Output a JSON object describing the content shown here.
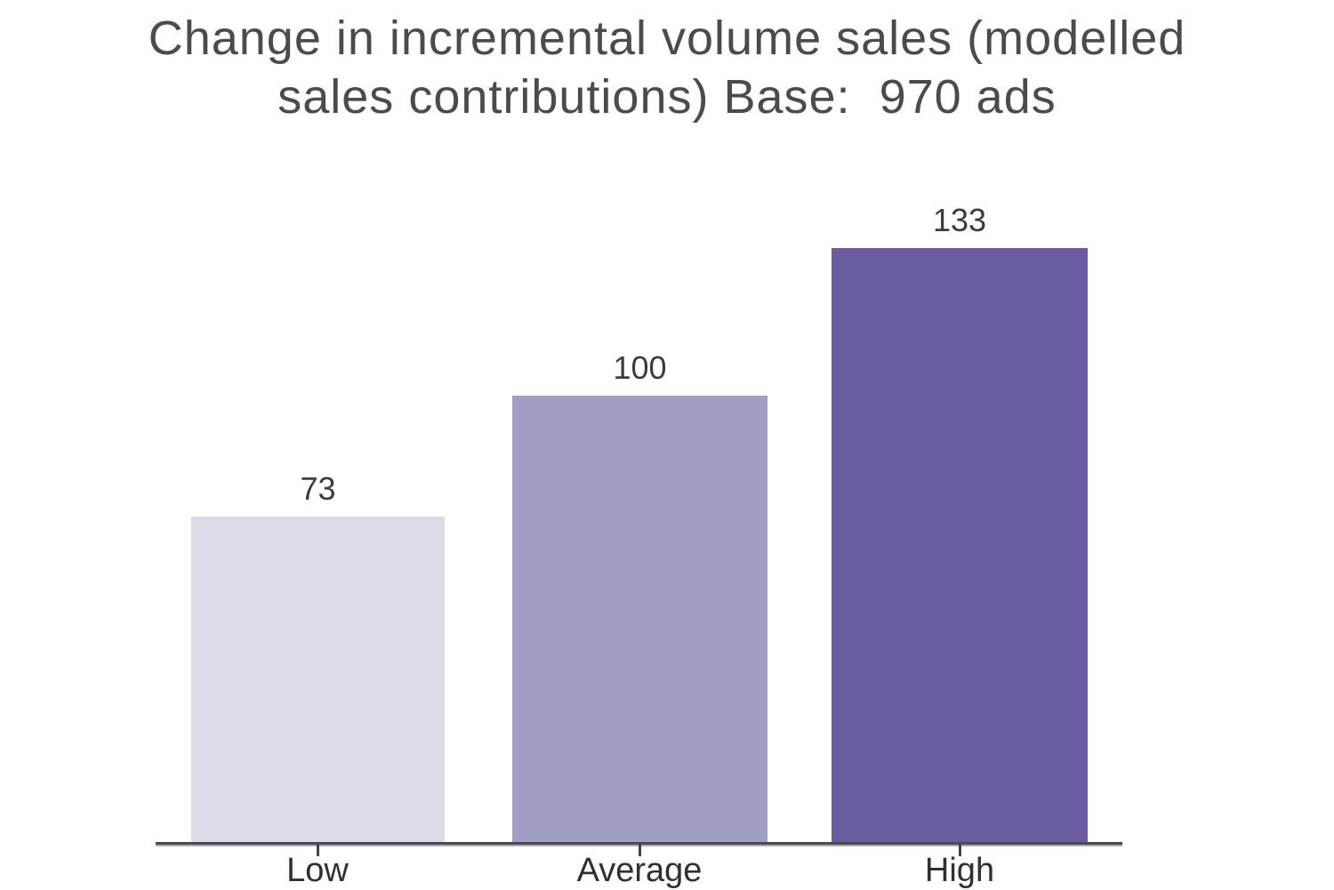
{
  "title": {
    "line1": "Change in incremental volume sales (modelled",
    "line2": "sales contributions) Base:  970 ads"
  },
  "chart_data": {
    "type": "bar",
    "title": "Change in incremental volume sales (modelled sales contributions) Base:  970 ads",
    "categories": [
      "Low",
      "Average",
      "High"
    ],
    "values": [
      73,
      100,
      133
    ],
    "bar_colors": [
      "#dbdae6",
      "#a19ec6",
      "#6b5ba1"
    ],
    "xlabel": "",
    "ylabel": "",
    "ylim": [
      0,
      140
    ],
    "grid": false,
    "legend": "none",
    "value_labels_shown": true,
    "title_color": "#4b4b4e",
    "label_color": "#3c3c3e",
    "axis_color": "#4b4b4d"
  }
}
